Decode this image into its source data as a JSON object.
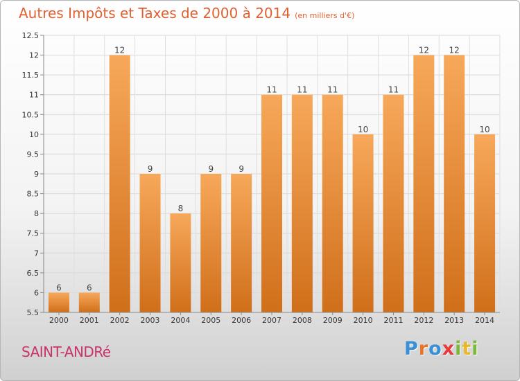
{
  "title": "Autres Impôts et Taxes de 2000 à 2014",
  "subtitle": "(en milliers d'€)",
  "place": "SAINT-ANDRé",
  "logo": {
    "text": "Proxiti",
    "letters": [
      {
        "char": "P",
        "color": "#3a8fd6"
      },
      {
        "char": "r",
        "color": "#e8732a"
      },
      {
        "char": "o",
        "color": "#3a8fd6"
      },
      {
        "char": "x",
        "color": "#e83a3a"
      },
      {
        "char": "i",
        "color": "#7ab83a"
      },
      {
        "char": "t",
        "color": "#e8b82a"
      },
      {
        "char": "i",
        "color": "#7ab83a"
      }
    ]
  },
  "colors": {
    "bar_light": "#f7a85a",
    "bar_dark": "#d06f1a",
    "title": "#e06030",
    "place": "#c8336a"
  },
  "chart_data": {
    "type": "bar",
    "categories": [
      "2000",
      "2001",
      "2002",
      "2003",
      "2004",
      "2005",
      "2006",
      "2007",
      "2008",
      "2009",
      "2010",
      "2011",
      "2012",
      "2013",
      "2014"
    ],
    "values": [
      6,
      6,
      12,
      9,
      8,
      9,
      9,
      11,
      11,
      11,
      10,
      11,
      12,
      12,
      10
    ],
    "labels": [
      "6",
      "6",
      "12",
      "9",
      "8",
      "9",
      "9",
      "11",
      "11",
      "11",
      "10",
      "11",
      "12",
      "12",
      "10"
    ],
    "ylim": [
      5.5,
      12.5
    ],
    "yticks": [
      5.5,
      6,
      6.5,
      7,
      7.5,
      8,
      8.5,
      9,
      9.5,
      10,
      10.5,
      11,
      11.5,
      12,
      12.5
    ],
    "ytick_labels": [
      "5.5",
      "6",
      "6.5",
      "7",
      "7.5",
      "8",
      "8.5",
      "9",
      "9.5",
      "10",
      "10.5",
      "11",
      "11.5",
      "12",
      "12.5"
    ],
    "grid": true,
    "legend": "none"
  }
}
